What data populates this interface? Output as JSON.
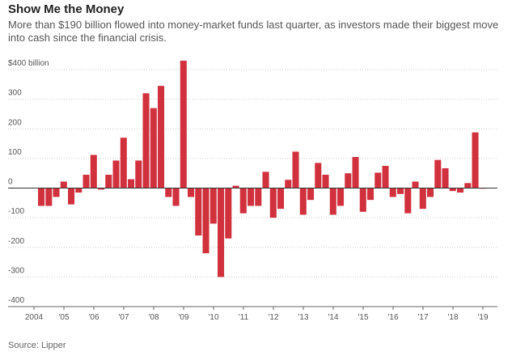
{
  "chart_data": {
    "type": "bar",
    "title": "Show Me the Money",
    "subtitle": [
      "More than $190 billion flowed into money-market funds last quarter, as investors made their biggest move",
      "into cash since the financial crisis."
    ],
    "source": "Source: Lipper",
    "x_axis_labels": [
      "2004",
      "'05",
      "'06",
      "'07",
      "'08",
      "'09",
      "'10",
      "'11",
      "'12",
      "'13",
      "'14",
      "'15",
      "'16",
      "'17",
      "'18",
      "'19"
    ],
    "values": [
      -60,
      -60,
      -30,
      22,
      -55,
      -15,
      45,
      112,
      -5,
      45,
      93,
      170,
      30,
      93,
      320,
      270,
      345,
      -30,
      -60,
      430,
      -30,
      -160,
      -220,
      -120,
      -300,
      -170,
      8,
      -85,
      -60,
      -60,
      55,
      -100,
      -70,
      28,
      123,
      -90,
      -40,
      85,
      45,
      -90,
      -60,
      50,
      105,
      -80,
      -40,
      52,
      75,
      -30,
      -20,
      -85,
      22,
      -70,
      -30,
      95,
      67,
      -10,
      -15,
      17,
      188,
      -2
    ],
    "color": "#d1303d",
    "ylim": [
      -400,
      400
    ],
    "yticks": [
      {
        "value": 400,
        "label": "$400 billion"
      },
      300,
      200,
      100,
      0,
      -100,
      -200,
      -300,
      -400
    ],
    "grid": true
  }
}
